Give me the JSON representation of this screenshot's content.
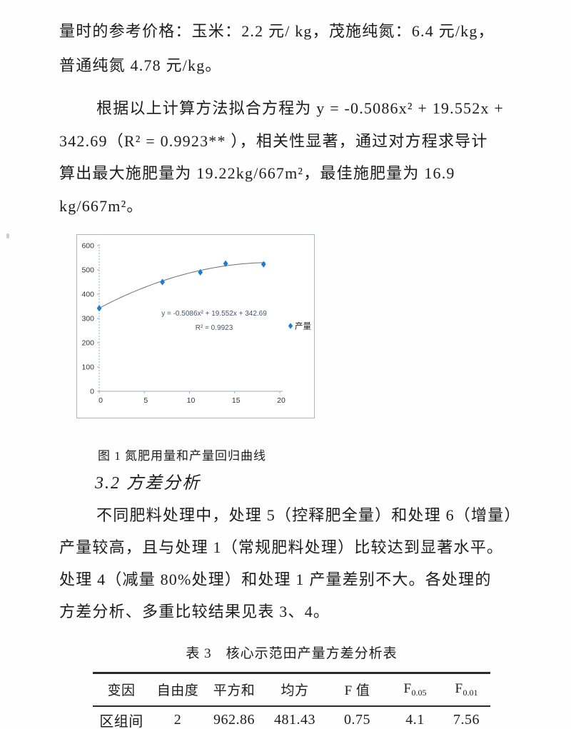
{
  "document": {
    "paragraph_prices": {
      "lines": [
        "量时的参考价格：玉米：2.2 元/ kg，茂施纯氮：6.4 元/kg，",
        "普通纯氮 4.78 元/kg。"
      ]
    },
    "paragraph_regression": {
      "lines": [
        "根据以上计算方法拟合方程为 y = -0.5086x² + 19.552x +",
        "342.69（R² = 0.9923** ），相关性显著，通过对方程求导计",
        "算出最大施肥量为  19.22kg/667m²，最佳施肥量为  16.9",
        "kg/667m²。"
      ]
    },
    "figure_caption": "图 1 氮肥用量和产量回归曲线",
    "section_heading": "3.2 方差分析",
    "paragraph_anova": {
      "lines": [
        "不同肥料处理中，处理 5（控释肥全量）和处理 6（增量）",
        "产量较高，且与处理 1（常规肥料处理）比较达到显著水平。",
        "处理 4（减量 80%处理）和处理 1 产量差别不大。各处理的",
        "方差分析、多重比较结果见表 3、4。"
      ]
    },
    "table3": {
      "title": "表 3　核心示范田产量方差分析表",
      "headers": [
        {
          "label": "变因",
          "sub": ""
        },
        {
          "label": "自由度",
          "sub": ""
        },
        {
          "label": "平方和",
          "sub": ""
        },
        {
          "label": "均方",
          "sub": ""
        },
        {
          "label": "F 值",
          "sub": ""
        },
        {
          "label": "F",
          "sub": "0.05"
        },
        {
          "label": "F",
          "sub": "0.01"
        }
      ],
      "rows": [
        [
          "区组间",
          "2",
          "962.86",
          "481.43",
          "0.75",
          "4.1",
          "7.56"
        ]
      ]
    }
  },
  "chart_data": {
    "type": "scatter",
    "title": "",
    "xlabel": "",
    "ylabel": "",
    "xlim": [
      0,
      20
    ],
    "ylim": [
      0,
      600
    ],
    "x_ticks": [
      0,
      5,
      10,
      15,
      20
    ],
    "y_ticks": [
      0,
      100,
      200,
      300,
      400,
      500,
      600
    ],
    "grid": false,
    "legend_position": "right",
    "series": [
      {
        "name": "产量",
        "x": [
          0,
          7,
          11.2,
          14,
          18.2
        ],
        "y": [
          342,
          450,
          490,
          526,
          523
        ]
      }
    ],
    "trendline": {
      "type": "quadratic",
      "a": -0.5086,
      "b": 19.552,
      "c": 342.69
    },
    "annotation": [
      "y = -0.5086x² + 19.552x + 342.69",
      "R² = 0.9923"
    ],
    "legend": [
      {
        "label": "产量",
        "marker": "diamond"
      }
    ],
    "marker_color": "#1b7cd6",
    "axis_color": "#95aace",
    "annotation_color": "#44546a",
    "curve_color": "#6f6f6f",
    "border_color": "#aeb4bc"
  }
}
